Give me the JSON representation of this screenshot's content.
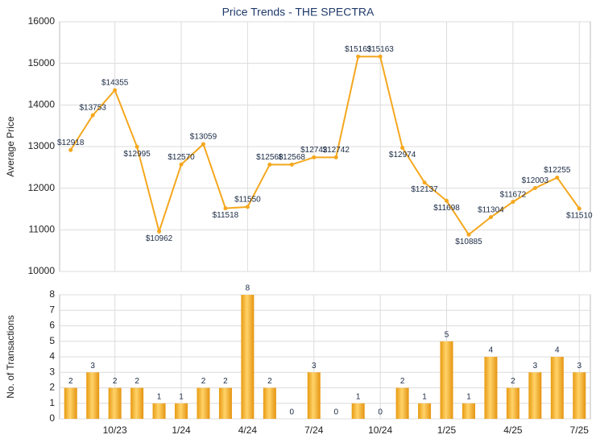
{
  "chart_data": [
    {
      "type": "line",
      "title": "Price Trends - THE SPECTRA",
      "ylabel": "Average Price",
      "color": "#f5a71e",
      "values": [
        12918,
        13753,
        14355,
        12995,
        10962,
        12570,
        13059,
        11518,
        11550,
        12568,
        12568,
        12742,
        12742,
        15163,
        15163,
        12974,
        12137,
        11698,
        10885,
        11304,
        11672,
        12003,
        12255,
        11510
      ],
      "value_labels": [
        "$12918",
        "$13753",
        "$14355",
        "$12995",
        "$10962",
        "$12570",
        "$13059",
        "$11518",
        "$11550",
        "$12568",
        "$12568",
        "$12742",
        "$12742",
        "$15163",
        "$15163",
        "$12974",
        "$12137",
        "$11698",
        "$10885",
        "$11304",
        "$11672",
        "$12003",
        "$12255",
        "$11510"
      ],
      "ylim": [
        10000,
        16000
      ],
      "yticks": [
        10000,
        11000,
        12000,
        13000,
        14000,
        15000,
        16000
      ],
      "grid": true
    },
    {
      "type": "bar",
      "ylabel": "No. of Transactions",
      "color": "#f2a91f",
      "categories": [
        null,
        null,
        "10/23",
        null,
        null,
        "1/24",
        null,
        null,
        "4/24",
        null,
        null,
        "7/24",
        null,
        null,
        "10/24",
        null,
        null,
        "1/25",
        null,
        null,
        "4/25",
        null,
        null,
        "7/25"
      ],
      "values": [
        2,
        3,
        2,
        2,
        1,
        1,
        2,
        2,
        8,
        2,
        0,
        3,
        0,
        1,
        0,
        2,
        1,
        5,
        1,
        4,
        2,
        3,
        4,
        3
      ],
      "ylim": [
        0,
        8
      ],
      "yticks": [
        0,
        1,
        2,
        3,
        4,
        5,
        6,
        7,
        8
      ],
      "grid": true
    }
  ]
}
